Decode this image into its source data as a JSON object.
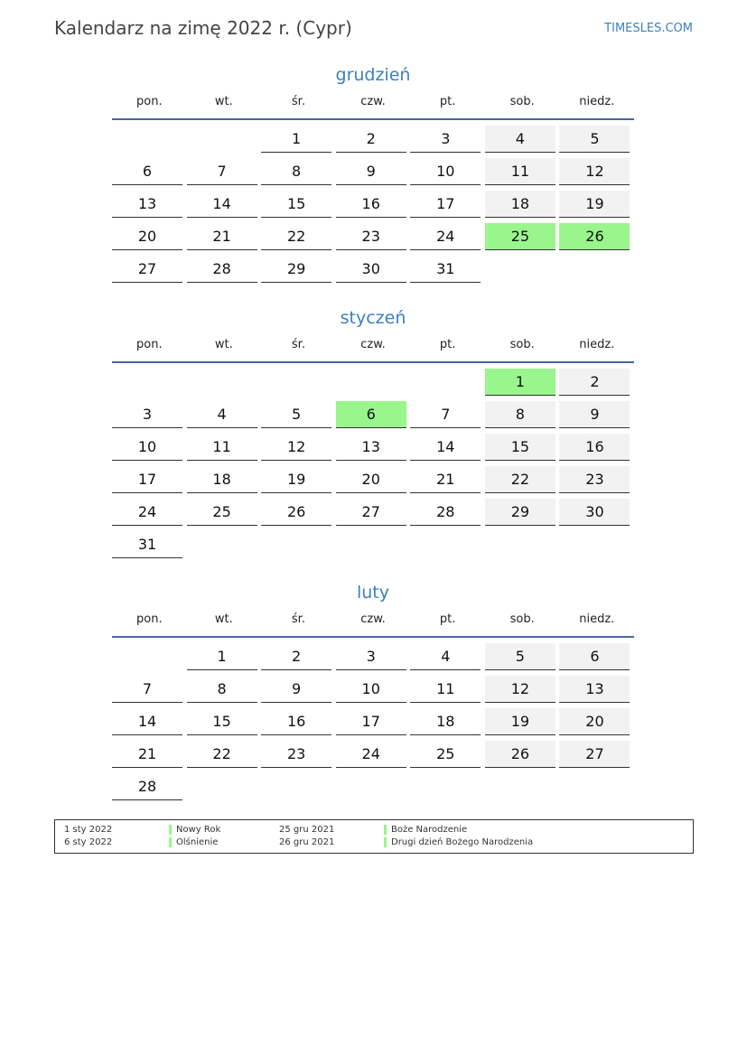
{
  "title": "Kalendarz na zimę 2022 r. (Cypr)",
  "site": "TIMESLES.COM",
  "weekdays": [
    "pon.",
    "wt.",
    "śr.",
    "czw.",
    "pt.",
    "sob.",
    "niedz."
  ],
  "colors": {
    "holiday": "#99f68c",
    "weekend": "#f2f2f2",
    "accent": "#3a7fc0"
  },
  "months": [
    {
      "name": "grudzień",
      "holidays": [
        "25",
        "26"
      ],
      "weeks": [
        [
          "",
          "",
          "1",
          "2",
          "3",
          "4",
          "5"
        ],
        [
          "6",
          "7",
          "8",
          "9",
          "10",
          "11",
          "12"
        ],
        [
          "13",
          "14",
          "15",
          "16",
          "17",
          "18",
          "19"
        ],
        [
          "20",
          "21",
          "22",
          "23",
          "24",
          "25",
          "26"
        ],
        [
          "27",
          "28",
          "29",
          "30",
          "31",
          "",
          ""
        ]
      ]
    },
    {
      "name": "styczeń",
      "holidays": [
        "1",
        "6"
      ],
      "weeks": [
        [
          "",
          "",
          "",
          "",
          "",
          "1",
          "2"
        ],
        [
          "3",
          "4",
          "5",
          "6",
          "7",
          "8",
          "9"
        ],
        [
          "10",
          "11",
          "12",
          "13",
          "14",
          "15",
          "16"
        ],
        [
          "17",
          "18",
          "19",
          "20",
          "21",
          "22",
          "23"
        ],
        [
          "24",
          "25",
          "26",
          "27",
          "28",
          "29",
          "30"
        ],
        [
          "31",
          "",
          "",
          "",
          "",
          "",
          ""
        ]
      ]
    },
    {
      "name": "luty",
      "holidays": [],
      "weeks": [
        [
          "",
          "1",
          "2",
          "3",
          "4",
          "5",
          "6"
        ],
        [
          "7",
          "8",
          "9",
          "10",
          "11",
          "12",
          "13"
        ],
        [
          "14",
          "15",
          "16",
          "17",
          "18",
          "19",
          "20"
        ],
        [
          "21",
          "22",
          "23",
          "24",
          "25",
          "26",
          "27"
        ],
        [
          "28",
          "",
          "",
          "",
          "",
          "",
          ""
        ]
      ]
    }
  ],
  "legend": [
    {
      "date": "1 sty 2022",
      "name": "Nowy Rok"
    },
    {
      "date": "6 sty 2022",
      "name": "Olśnienie"
    },
    {
      "date": "25 gru 2021",
      "name": "Boże Narodzenie"
    },
    {
      "date": "26 gru 2021",
      "name": "Drugi dzień Bożego Narodzenia"
    }
  ]
}
